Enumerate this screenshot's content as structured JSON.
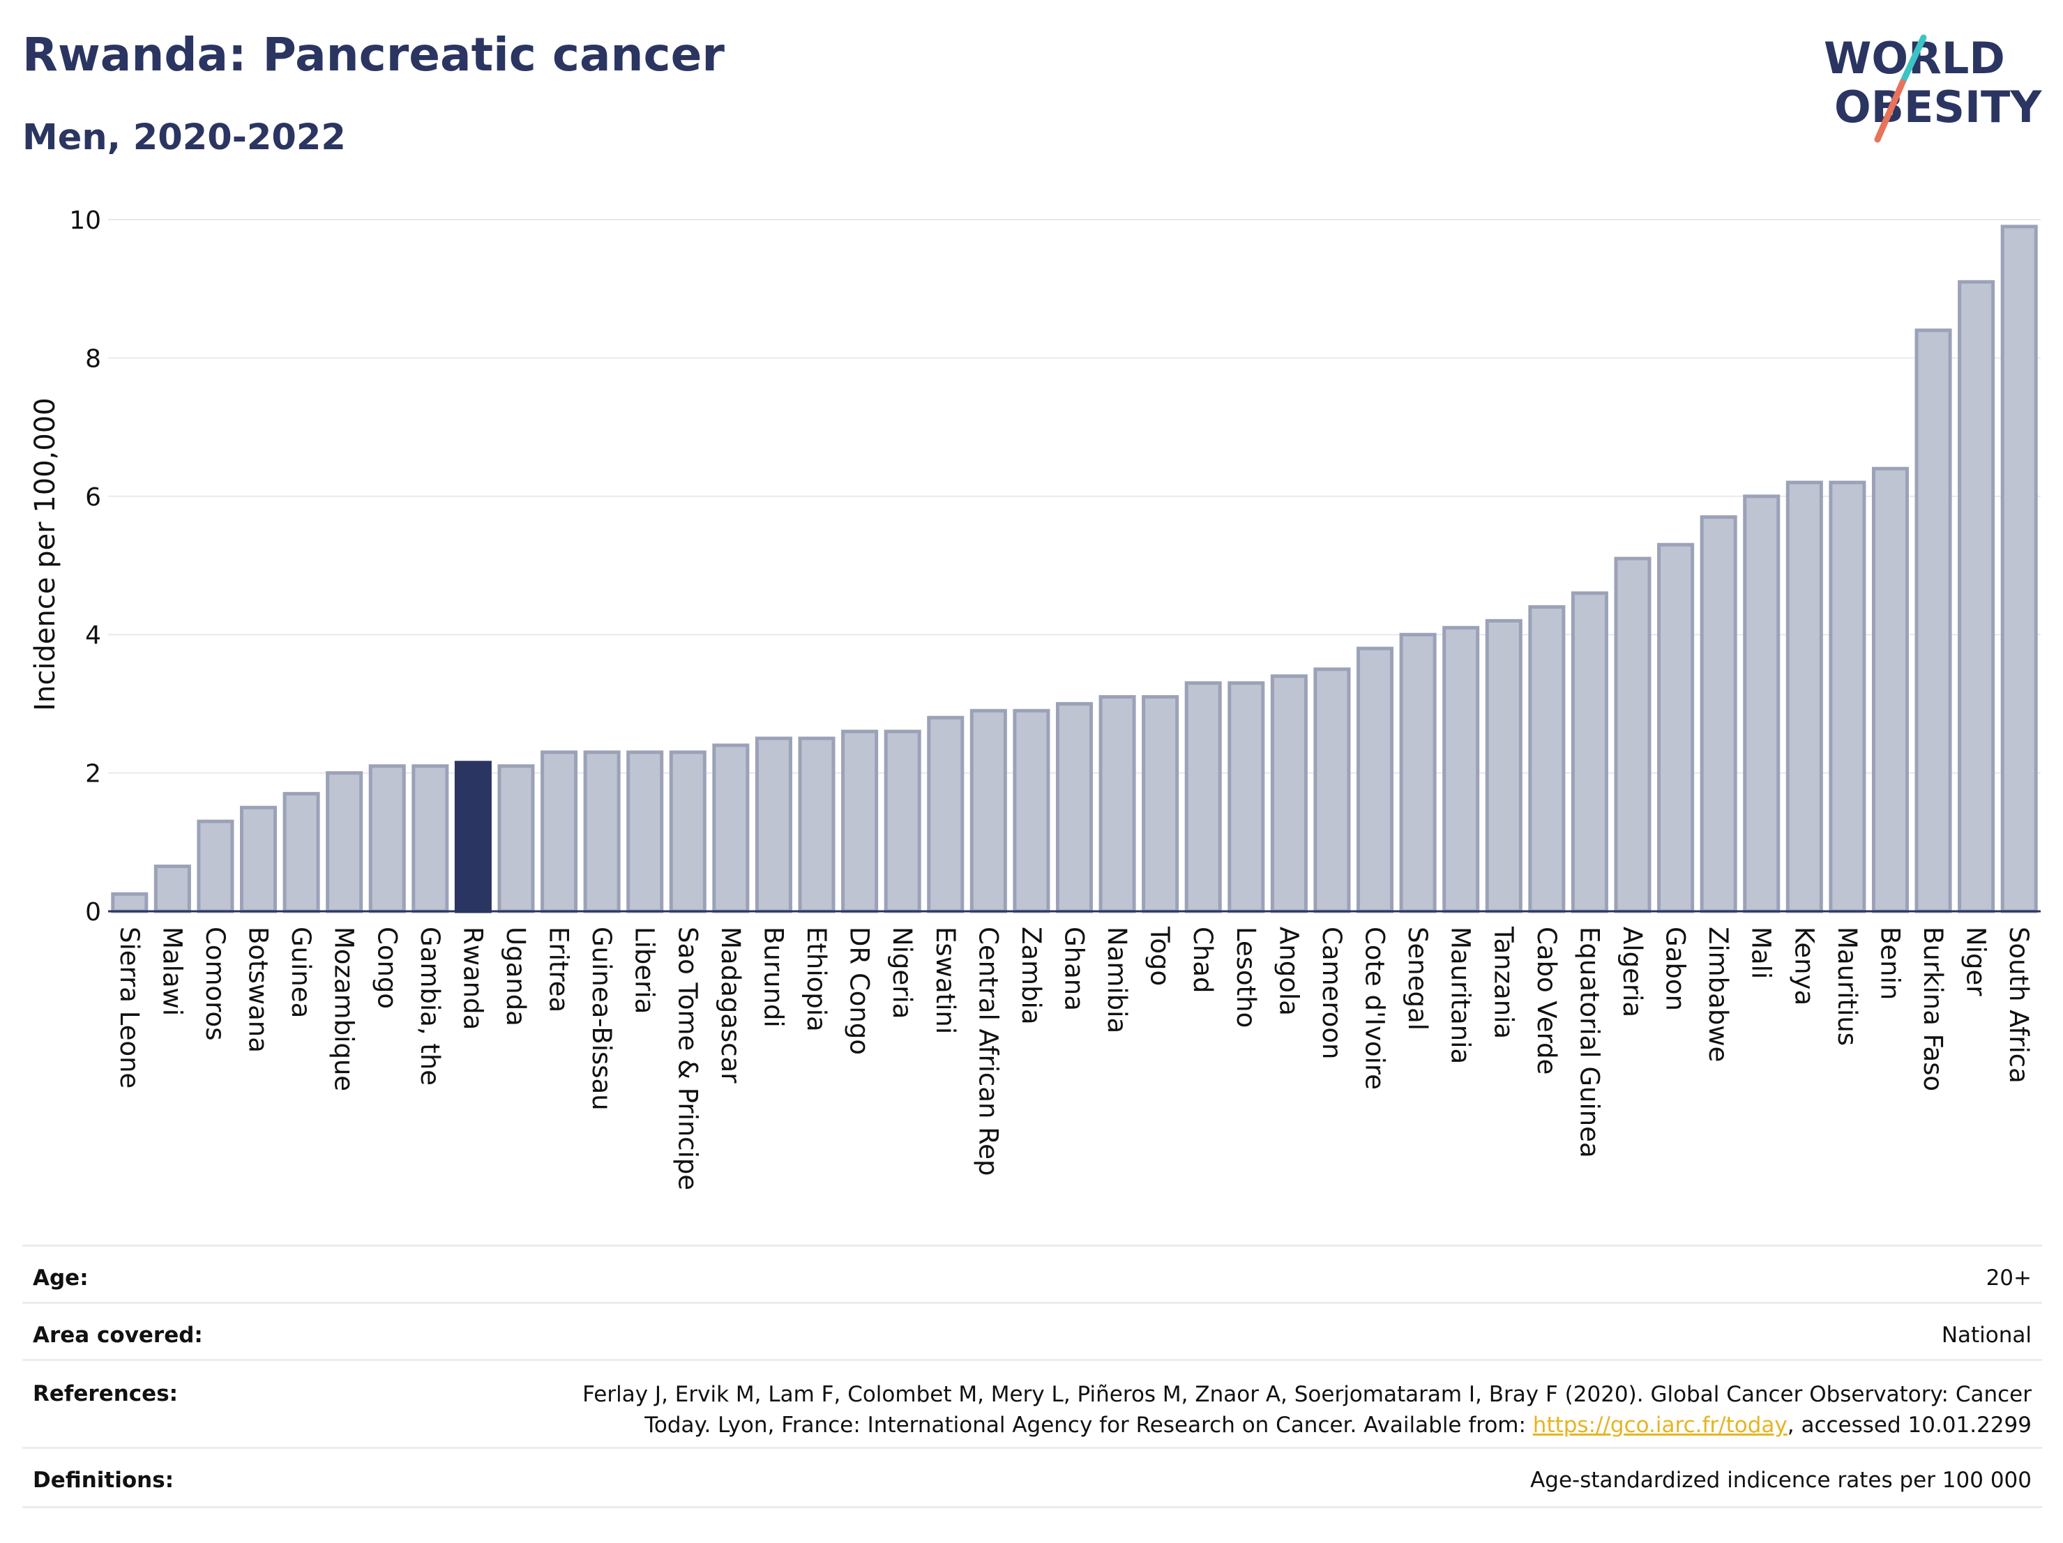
{
  "title": "Rwanda: Pancreatic cancer",
  "subtitle": "Men, 2020-2022",
  "logo": {
    "line1": "WORLD",
    "line2": "OBESITY",
    "accent_colors": [
      "#e8735a",
      "#3cc3c6"
    ]
  },
  "colors": {
    "bar": "#bfc4d3",
    "bar_stroke": "#9ba2b8",
    "highlight": "#2b3561",
    "grid": "#e6e9ee",
    "axis": "#2b3561"
  },
  "chart_data": {
    "type": "bar",
    "ylabel": "Incidence per 100,000",
    "xlabel": "",
    "ylim": [
      0,
      10
    ],
    "yticks": [
      0,
      2,
      4,
      6,
      8,
      10
    ],
    "highlight": "Rwanda",
    "categories": [
      "Sierra Leone",
      "Malawi",
      "Comoros",
      "Botswana",
      "Guinea",
      "Mozambique",
      "Congo",
      "Gambia, the",
      "Rwanda",
      "Uganda",
      "Eritrea",
      "Guinea-Bissau",
      "Liberia",
      "Sao Tome & Principe",
      "Madagascar",
      "Burundi",
      "Ethiopia",
      "DR Congo",
      "Nigeria",
      "Eswatini",
      "Central African Rep",
      "Zambia",
      "Ghana",
      "Namibia",
      "Togo",
      "Chad",
      "Lesotho",
      "Angola",
      "Cameroon",
      "Cote d'Ivoire",
      "Senegal",
      "Mauritania",
      "Tanzania",
      "Cabo Verde",
      "Equatorial Guinea",
      "Algeria",
      "Gabon",
      "Zimbabwe",
      "Mali",
      "Kenya",
      "Mauritius",
      "Benin",
      "Burkina Faso",
      "Niger",
      "South Africa"
    ],
    "values": [
      0.25,
      0.65,
      1.3,
      1.5,
      1.7,
      2.0,
      2.1,
      2.1,
      2.15,
      2.1,
      2.3,
      2.3,
      2.3,
      2.3,
      2.4,
      2.5,
      2.5,
      2.6,
      2.6,
      2.8,
      2.9,
      2.9,
      3.0,
      3.1,
      3.1,
      3.3,
      3.3,
      3.4,
      3.5,
      3.8,
      4.0,
      4.1,
      4.2,
      4.4,
      4.6,
      5.1,
      5.3,
      5.7,
      6.0,
      6.2,
      6.2,
      6.4,
      8.4,
      9.1,
      9.9
    ]
  },
  "meta": [
    {
      "key": "Age:",
      "value": "20+"
    },
    {
      "key": "Area covered:",
      "value": "National"
    },
    {
      "key": "References:",
      "value_line1": "Ferlay J, Ervik M, Lam F, Colombet M, Mery L, Piñeros M, Znaor A, Soerjomataram I, Bray F (2020). Global Cancer Observatory: Cancer",
      "value_line2_pre": "Today. Lyon, France: International Agency for Research on Cancer. Available from: ",
      "value_link": "https://gco.iarc.fr/today",
      "value_line2_post": ", accessed 10.01.2299"
    },
    {
      "key": "Definitions:",
      "value": "Age-standardized indicence rates per 100 000"
    }
  ]
}
